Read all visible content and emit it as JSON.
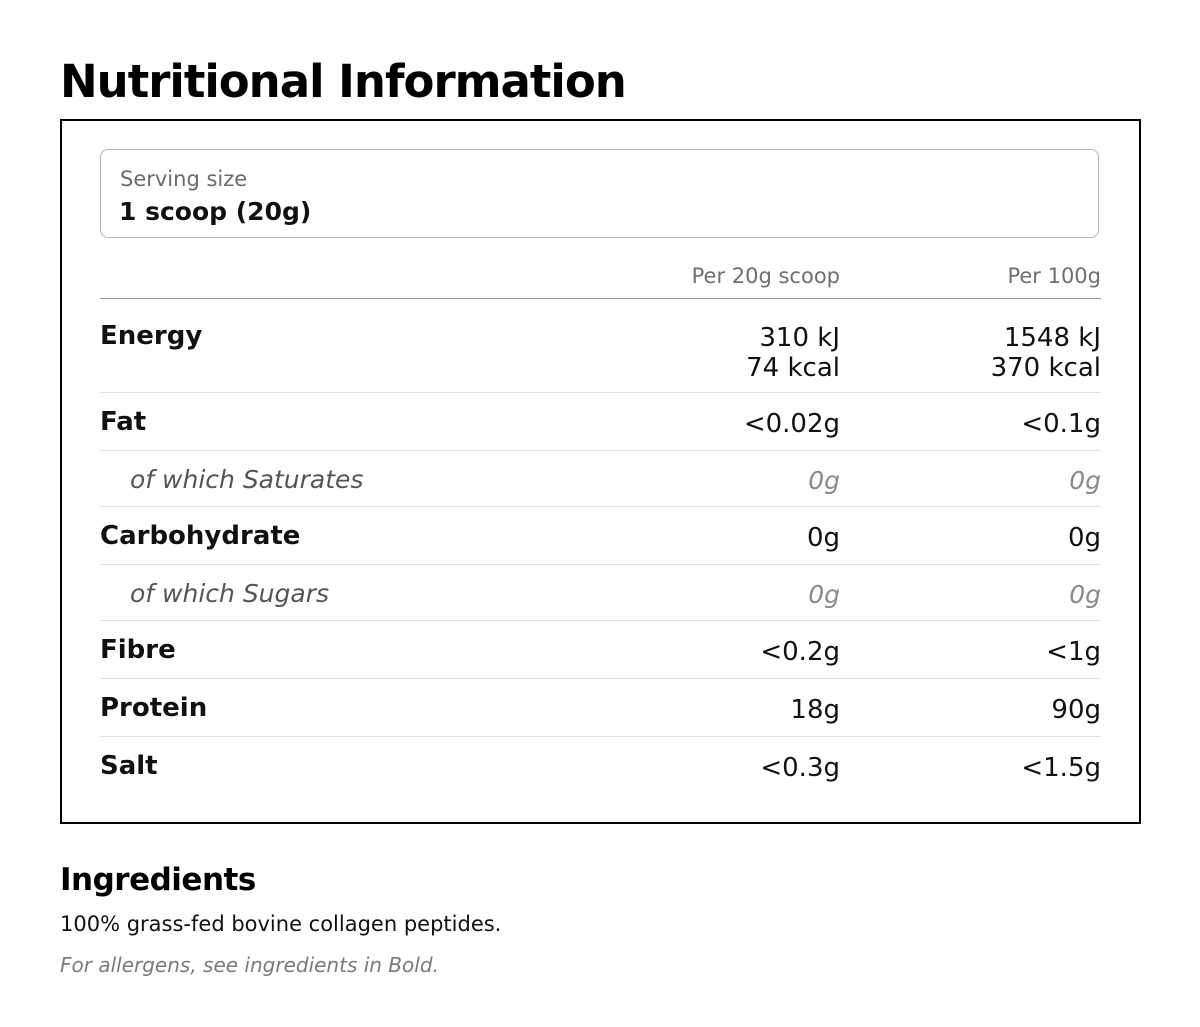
{
  "title": "Nutritional Information",
  "serving": {
    "label": "Serving size",
    "value": "1 scoop (20g)"
  },
  "table": {
    "headers": [
      "Per 20g scoop",
      "Per 100g"
    ],
    "rows": [
      {
        "name": "Energy",
        "per_serving": [
          "310 kJ",
          "74 kcal"
        ],
        "per_100g": [
          "1548 kJ",
          "370 kcal"
        ],
        "sub": false
      },
      {
        "name": "Fat",
        "per_serving": "<0.02g",
        "per_100g": "<0.1g",
        "sub": false
      },
      {
        "name": "of which Saturates",
        "per_serving": "0g",
        "per_100g": "0g",
        "sub": true
      },
      {
        "name": "Carbohydrate",
        "per_serving": "0g",
        "per_100g": "0g",
        "sub": false
      },
      {
        "name": "of which Sugars",
        "per_serving": "0g",
        "per_100g": "0g",
        "sub": true
      },
      {
        "name": "Fibre",
        "per_serving": "<0.2g",
        "per_100g": "<1g",
        "sub": false
      },
      {
        "name": "Protein",
        "per_serving": "18g",
        "per_100g": "90g",
        "sub": false
      },
      {
        "name": "Salt",
        "per_serving": "<0.3g",
        "per_100g": "<1.5g",
        "sub": false
      }
    ]
  },
  "ingredients": {
    "title": "Ingredients",
    "text": "100% grass-fed bovine collagen peptides.",
    "note": "For allergens, see ingredients in Bold."
  }
}
